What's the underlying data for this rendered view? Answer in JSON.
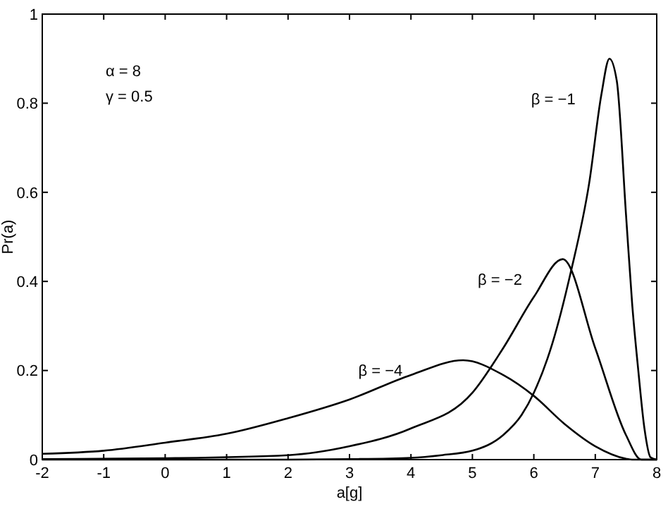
{
  "chart_data": {
    "type": "line",
    "xlabel": "a[g]",
    "ylabel": "Pr(a)",
    "xlim": [
      -2,
      8
    ],
    "ylim": [
      0,
      1
    ],
    "xticks": [
      -2,
      -1,
      0,
      1,
      2,
      3,
      4,
      5,
      6,
      7,
      8
    ],
    "yticks": [
      0,
      0.2,
      0.4,
      0.6,
      0.8,
      1
    ],
    "grid": false,
    "marker": "none",
    "line_style": "solid",
    "series": [
      {
        "name": "β = −1",
        "color": "#000000",
        "x": [
          -2,
          2,
          3,
          4,
          4.5,
          5,
          5.5,
          5.8,
          6,
          6.3,
          6.6,
          6.9,
          7.1,
          7.23,
          7.35,
          7.5,
          7.6,
          7.7,
          7.8,
          7.9,
          8
        ],
        "values": [
          0,
          0,
          0.001,
          0.004,
          0.01,
          0.02,
          0.055,
          0.1,
          0.15,
          0.26,
          0.42,
          0.62,
          0.82,
          0.9,
          0.85,
          0.55,
          0.35,
          0.2,
          0.07,
          0.005,
          0
        ]
      },
      {
        "name": "β = −2",
        "color": "#000000",
        "x": [
          -2,
          0,
          2,
          3,
          4,
          5,
          5.5,
          6,
          6.47,
          7,
          7.5,
          7.75,
          8
        ],
        "values": [
          0.001,
          0.003,
          0.01,
          0.03,
          0.07,
          0.15,
          0.25,
          0.365,
          0.45,
          0.25,
          0.055,
          0,
          0
        ]
      },
      {
        "name": "β = −4",
        "color": "#000000",
        "x": [
          -2,
          -1,
          0,
          1,
          2,
          3,
          4,
          4.85,
          5.5,
          6,
          6.5,
          7,
          7.5,
          7.6,
          8
        ],
        "values": [
          0.013,
          0.02,
          0.038,
          0.058,
          0.093,
          0.135,
          0.19,
          0.223,
          0.19,
          0.143,
          0.08,
          0.03,
          0.002,
          0,
          0
        ]
      }
    ],
    "annotations": [
      "α = 8",
      "γ = 0.5"
    ]
  }
}
